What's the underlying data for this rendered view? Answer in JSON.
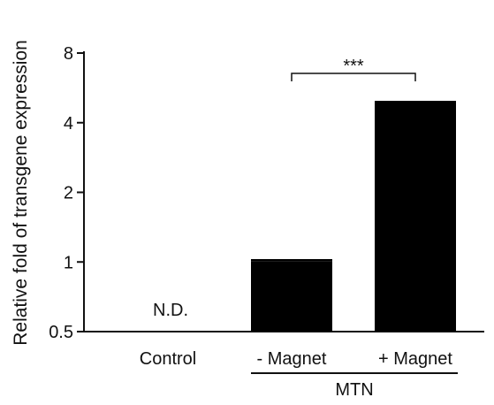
{
  "chart_data": {
    "type": "bar",
    "categories": [
      "Control",
      "- Magnet",
      "+ Magnet"
    ],
    "values": [
      null,
      1.01,
      4.9
    ],
    "error_bars": [
      null,
      0.01,
      0.03
    ],
    "title": "",
    "xlabel": "",
    "ylabel": "Relative fold of transgene expression",
    "yscale": "log2",
    "ylim": [
      0.5,
      8
    ],
    "yticks": [
      0.5,
      1,
      2,
      4,
      8
    ],
    "ytick_labels": [
      "0.5",
      "1",
      "2",
      "4",
      "8"
    ],
    "bar_color": "#000000",
    "annotations": {
      "not_detected": "N.D.",
      "significance": "***"
    },
    "group_label": "MTN",
    "grid": false,
    "legend": "none"
  }
}
